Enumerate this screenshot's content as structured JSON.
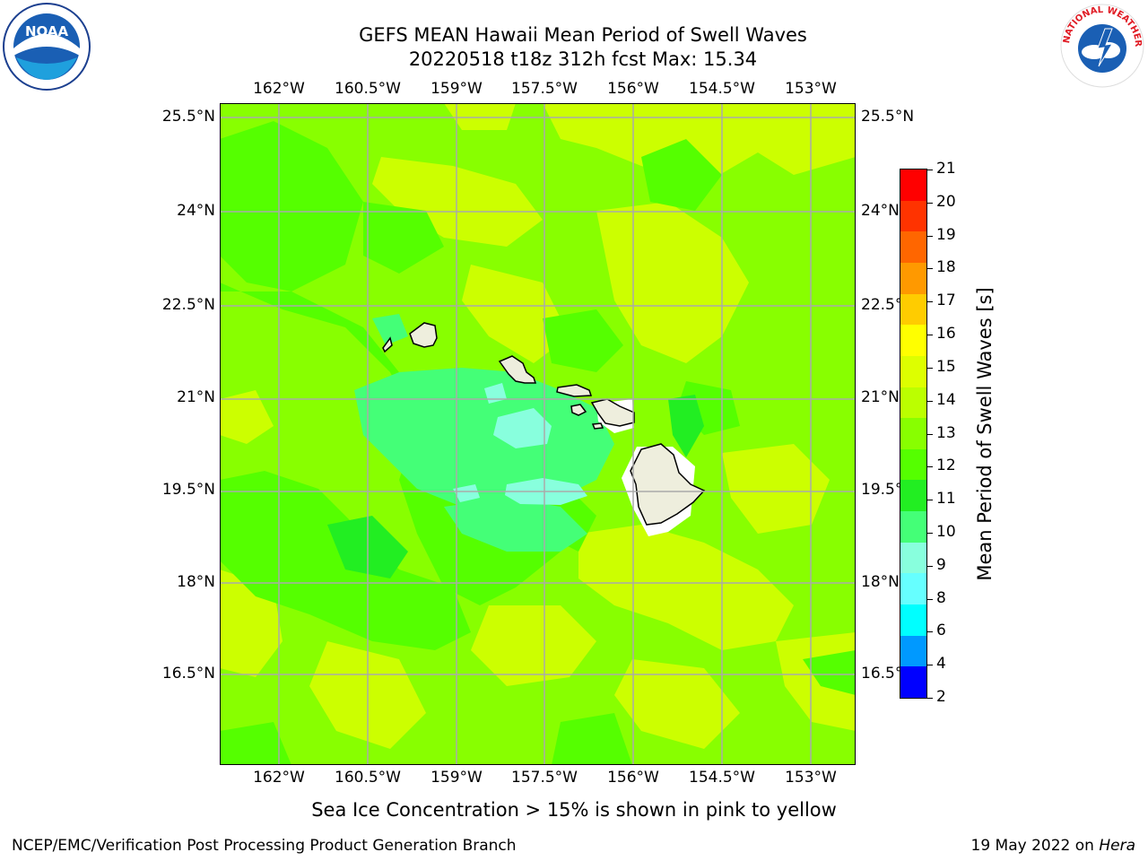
{
  "title_line1": "GEFS MEAN Hawaii Mean Period of Swell Waves",
  "title_line2": "20220518 t18z 312h fcst   Max: 15.34",
  "longitudes": [
    "162°W",
    "160.5°W",
    "159°W",
    "157.5°W",
    "156°W",
    "154.5°W",
    "153°W"
  ],
  "latitudes": [
    "25.5°N",
    "24°N",
    "22.5°N",
    "21°N",
    "19.5°N",
    "18°N",
    "16.5°N"
  ],
  "colorbar": {
    "label": "Mean Period of Swell Waves [s]",
    "ticks": [
      "21",
      "20",
      "19",
      "18",
      "17",
      "16",
      "15",
      "14",
      "13",
      "12",
      "11",
      "10",
      "9",
      "8",
      "6",
      "4",
      "2"
    ],
    "colors_top_to_bottom": [
      "#ff0000",
      "#ff3300",
      "#ff6600",
      "#ff9900",
      "#ffcc00",
      "#ffff00",
      "#ddff00",
      "#bbff00",
      "#88ff00",
      "#55ff00",
      "#22ee22",
      "#44ff77",
      "#88ffdd",
      "#66ffff",
      "#00ffff",
      "#0099ff",
      "#0000ff"
    ]
  },
  "field_colors": {
    "light_green": "#88ff00",
    "yellow_green": "#ccff00",
    "green": "#55ff00",
    "bright_green": "#22ee22",
    "sea_green": "#44ff77",
    "aqua": "#88ffdd",
    "land": "#eeeedd"
  },
  "note": "Sea Ice Concentration > 15% is shown in pink to yellow",
  "footer_left": "NCEP/EMC/Verification Post Processing Product Generation Branch",
  "footer_date": "19 May 2022 on ",
  "footer_host": "Hera",
  "logos": {
    "noaa_text": "NOAA",
    "nws_text": "NATIONAL WEATHER SERVICE"
  },
  "icons": {
    "noaa": "noaa-logo-icon",
    "nws": "nws-logo-icon"
  }
}
